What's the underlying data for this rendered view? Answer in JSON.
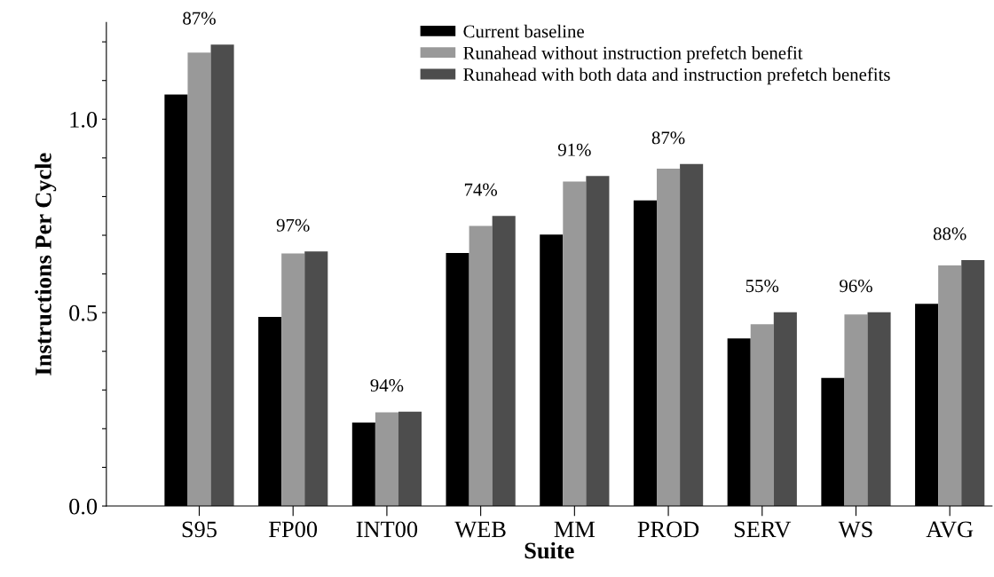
{
  "chart_data": {
    "type": "bar",
    "xlabel": "Suite",
    "ylabel": "Instructions Per Cycle",
    "categories": [
      "S95",
      "FP00",
      "INT00",
      "WEB",
      "MM",
      "PROD",
      "SERV",
      "WS",
      "AVG"
    ],
    "series": [
      {
        "name": "Current baseline",
        "color": "#000000",
        "values": [
          1.064,
          0.489,
          0.216,
          0.654,
          0.702,
          0.79,
          0.433,
          0.331,
          0.523
        ]
      },
      {
        "name": "Runahead without instruction prefetch benefit",
        "color": "#999999",
        "values": [
          1.172,
          0.653,
          0.242,
          0.724,
          0.839,
          0.872,
          0.47,
          0.495,
          0.622
        ]
      },
      {
        "name": "Runahead with both data and instruction prefetch benefits",
        "color": "#4d4d4d",
        "values": [
          1.193,
          0.658,
          0.244,
          0.75,
          0.853,
          0.884,
          0.501,
          0.501,
          0.636
        ]
      }
    ],
    "annotations": [
      "87%",
      "97%",
      "94%",
      "74%",
      "91%",
      "87%",
      "55%",
      "96%",
      "88%"
    ],
    "ylim": [
      0,
      1.25
    ],
    "yticks": [
      {
        "value": 0,
        "label": "0.0"
      },
      {
        "value": 0.1,
        "label": null
      },
      {
        "value": 0.2,
        "label": null
      },
      {
        "value": 0.3,
        "label": null
      },
      {
        "value": 0.4,
        "label": null
      },
      {
        "value": 0.5,
        "label": "0.5"
      },
      {
        "value": 0.6,
        "label": null
      },
      {
        "value": 0.7,
        "label": null
      },
      {
        "value": 0.8,
        "label": null
      },
      {
        "value": 0.9,
        "label": null
      },
      {
        "value": 1.0,
        "label": "1.0"
      },
      {
        "value": 1.1,
        "label": null
      },
      {
        "value": 1.2,
        "label": null
      }
    ],
    "legend": "top",
    "grid": false
  }
}
